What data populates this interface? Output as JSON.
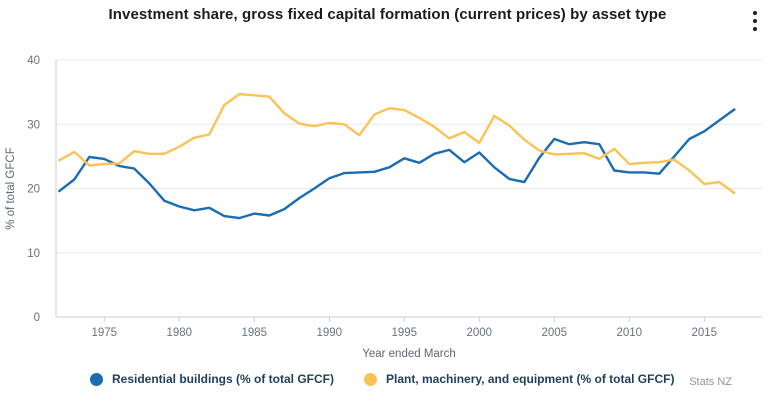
{
  "header": {
    "title": "Investment share, gross fixed capital formation (current prices) by asset type"
  },
  "chart_data": {
    "type": "line",
    "title": "Investment share, gross fixed capital formation (current prices) by asset type",
    "xlabel": "Year ended March",
    "ylabel": "% of total GFCF",
    "ylim": [
      0,
      40
    ],
    "yticks": [
      0,
      10,
      20,
      30,
      40
    ],
    "xticks": [
      1975,
      1980,
      1985,
      1990,
      1995,
      2000,
      2005,
      2010,
      2015
    ],
    "grid": "horizontal",
    "legend_position": "bottom",
    "x": [
      1972,
      1973,
      1974,
      1975,
      1976,
      1977,
      1978,
      1979,
      1980,
      1981,
      1982,
      1983,
      1984,
      1985,
      1986,
      1987,
      1988,
      1989,
      1990,
      1991,
      1992,
      1993,
      1994,
      1995,
      1996,
      1997,
      1998,
      1999,
      2000,
      2001,
      2002,
      2003,
      2004,
      2005,
      2006,
      2007,
      2008,
      2009,
      2010,
      2011,
      2012,
      2013,
      2014,
      2015,
      2016,
      2017
    ],
    "series": [
      {
        "name": "Residential buildings (% of total GFCF)",
        "color": "#1b6cb1",
        "values": [
          19.6,
          21.4,
          24.9,
          24.6,
          23.5,
          23.1,
          20.8,
          18.1,
          17.2,
          16.6,
          17.0,
          15.7,
          15.4,
          16.1,
          15.8,
          16.8,
          18.5,
          20.0,
          21.6,
          22.4,
          22.5,
          22.6,
          23.3,
          24.7,
          24.0,
          25.4,
          26.0,
          24.1,
          25.6,
          23.3,
          21.5,
          21.0,
          24.8,
          27.7,
          26.9,
          27.2,
          26.9,
          22.8,
          22.5,
          22.5,
          22.3,
          25.0,
          27.7,
          28.9,
          30.6,
          32.3
        ]
      },
      {
        "name": "Plant, machinery, and equipment (% of total GFCF)",
        "color": "#fbc355",
        "values": [
          24.4,
          25.7,
          23.6,
          23.8,
          23.9,
          25.8,
          25.4,
          25.4,
          26.5,
          27.9,
          28.4,
          33.0,
          34.7,
          34.5,
          34.3,
          31.7,
          30.1,
          29.7,
          30.2,
          30.0,
          28.3,
          31.5,
          32.5,
          32.2,
          31.0,
          29.6,
          27.8,
          28.8,
          27.1,
          31.3,
          29.8,
          27.6,
          25.9,
          25.3,
          25.4,
          25.5,
          24.6,
          26.2,
          23.8,
          24.0,
          24.1,
          24.5,
          22.8,
          20.7,
          21.0,
          19.3
        ]
      }
    ]
  },
  "footer": {
    "source": "Stats NZ"
  }
}
